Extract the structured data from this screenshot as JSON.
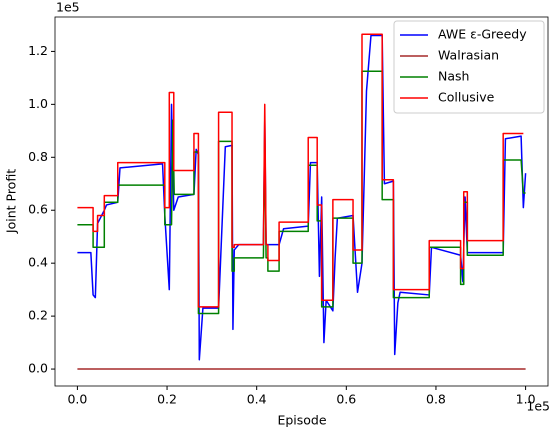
{
  "chart_data": {
    "type": "line",
    "xlabel": "Episode",
    "ylabel": "Joint Profit",
    "x_offset_label": "1e5",
    "y_offset_label": "1e5",
    "xlim": [
      -0.05,
      1.05
    ],
    "ylim": [
      -0.064,
      1.33
    ],
    "xticks": [
      {
        "value": 0,
        "label": "0.0"
      },
      0.2,
      0.4,
      0.6,
      0.8,
      {
        "value": 1,
        "label": "1.0"
      }
    ],
    "yticks": [
      {
        "value": 0,
        "label": "0.0"
      },
      0.2,
      0.4,
      0.6,
      0.8,
      {
        "value": 1,
        "label": "1.0"
      },
      1.2
    ],
    "grid": false,
    "legend": "upper right",
    "series": [
      {
        "name": "AWE ε-Greedy",
        "color": "#0000ff",
        "x": [
          0,
          0.03,
          0.035,
          0.04,
          0.045,
          0.06,
          0.065,
          0.09,
          0.095,
          0.19,
          0.195,
          0.205,
          0.21,
          0.215,
          0.225,
          0.26,
          0.265,
          0.27,
          0.272,
          0.28,
          0.315,
          0.33,
          0.345,
          0.347,
          0.35,
          0.36,
          0.415,
          0.418,
          0.421,
          0.45,
          0.46,
          0.515,
          0.52,
          0.535,
          0.54,
          0.545,
          0.55,
          0.555,
          0.57,
          0.575,
          0.58,
          0.615,
          0.625,
          0.635,
          0.645,
          0.655,
          0.68,
          0.685,
          0.705,
          0.708,
          0.715,
          0.72,
          0.785,
          0.79,
          0.855,
          0.86,
          0.865,
          0.87,
          0.95,
          0.955,
          0.99,
          0.995,
          1.0
        ],
        "values": [
          0.44,
          0.44,
          0.28,
          0.27,
          0.55,
          0.6,
          0.62,
          0.63,
          0.76,
          0.775,
          0.58,
          0.3,
          1.0,
          0.6,
          0.65,
          0.66,
          0.83,
          0.81,
          0.035,
          0.23,
          0.23,
          0.84,
          0.845,
          0.15,
          0.45,
          0.47,
          0.47,
          0.94,
          0.47,
          0.47,
          0.53,
          0.54,
          0.78,
          0.78,
          0.35,
          0.65,
          0.1,
          0.26,
          0.22,
          0.42,
          0.57,
          0.58,
          0.29,
          0.4,
          1.05,
          1.26,
          1.26,
          0.7,
          0.71,
          0.055,
          0.25,
          0.29,
          0.28,
          0.46,
          0.43,
          0.33,
          0.65,
          0.44,
          0.44,
          0.87,
          0.88,
          0.61,
          0.74
        ]
      },
      {
        "name": "Walrasian",
        "color": "#a52a2a",
        "x": [
          0,
          1
        ],
        "values": [
          0,
          0
        ]
      },
      {
        "name": "Nash",
        "color": "#008000",
        "x": [
          0,
          0.035,
          0.035,
          0.06,
          0.06,
          0.09,
          0.09,
          0.195,
          0.195,
          0.21,
          0.213,
          0.216,
          0.26,
          0.26,
          0.27,
          0.27,
          0.315,
          0.315,
          0.345,
          0.345,
          0.35,
          0.35,
          0.415,
          0.418,
          0.421,
          0.425,
          0.425,
          0.45,
          0.45,
          0.515,
          0.515,
          0.535,
          0.535,
          0.545,
          0.545,
          0.57,
          0.57,
          0.615,
          0.615,
          0.635,
          0.635,
          0.68,
          0.68,
          0.705,
          0.705,
          0.785,
          0.785,
          0.855,
          0.855,
          0.862,
          0.862,
          0.87,
          0.87,
          0.95,
          0.95,
          0.99,
          0.995,
          1.0
        ],
        "values": [
          0.545,
          0.545,
          0.46,
          0.46,
          0.63,
          0.63,
          0.695,
          0.695,
          0.545,
          0.545,
          0.94,
          0.66,
          0.66,
          0.82,
          0.82,
          0.21,
          0.21,
          0.86,
          0.86,
          0.37,
          0.37,
          0.42,
          0.42,
          0.88,
          0.42,
          0.42,
          0.37,
          0.37,
          0.52,
          0.52,
          0.77,
          0.77,
          0.56,
          0.56,
          0.235,
          0.235,
          0.57,
          0.57,
          0.4,
          0.4,
          1.125,
          1.125,
          0.64,
          0.64,
          0.27,
          0.27,
          0.46,
          0.46,
          0.32,
          0.32,
          0.63,
          0.63,
          0.43,
          0.43,
          0.79,
          0.79,
          0.665,
          0.665
        ]
      },
      {
        "name": "Collusive",
        "color": "#ff0000",
        "x": [
          0,
          0.035,
          0.035,
          0.045,
          0.045,
          0.06,
          0.06,
          0.09,
          0.09,
          0.195,
          0.195,
          0.205,
          0.205,
          0.215,
          0.215,
          0.26,
          0.26,
          0.27,
          0.27,
          0.315,
          0.315,
          0.345,
          0.345,
          0.35,
          0.35,
          0.415,
          0.418,
          0.421,
          0.425,
          0.425,
          0.45,
          0.45,
          0.515,
          0.515,
          0.535,
          0.535,
          0.545,
          0.545,
          0.57,
          0.57,
          0.615,
          0.615,
          0.635,
          0.635,
          0.68,
          0.68,
          0.705,
          0.705,
          0.785,
          0.785,
          0.855,
          0.855,
          0.862,
          0.862,
          0.87,
          0.87,
          0.95,
          0.95,
          0.995
        ],
        "values": [
          0.61,
          0.61,
          0.52,
          0.52,
          0.58,
          0.58,
          0.655,
          0.655,
          0.78,
          0.78,
          0.61,
          0.61,
          1.045,
          1.045,
          0.75,
          0.75,
          0.89,
          0.89,
          0.235,
          0.235,
          0.97,
          0.97,
          0.46,
          0.46,
          0.47,
          0.47,
          1.0,
          0.47,
          0.47,
          0.41,
          0.41,
          0.555,
          0.555,
          0.875,
          0.875,
          0.62,
          0.62,
          0.26,
          0.26,
          0.64,
          0.64,
          0.45,
          0.45,
          1.265,
          1.265,
          0.715,
          0.715,
          0.3,
          0.3,
          0.485,
          0.485,
          0.38,
          0.38,
          0.67,
          0.67,
          0.485,
          0.485,
          0.89,
          0.89
        ]
      }
    ]
  }
}
